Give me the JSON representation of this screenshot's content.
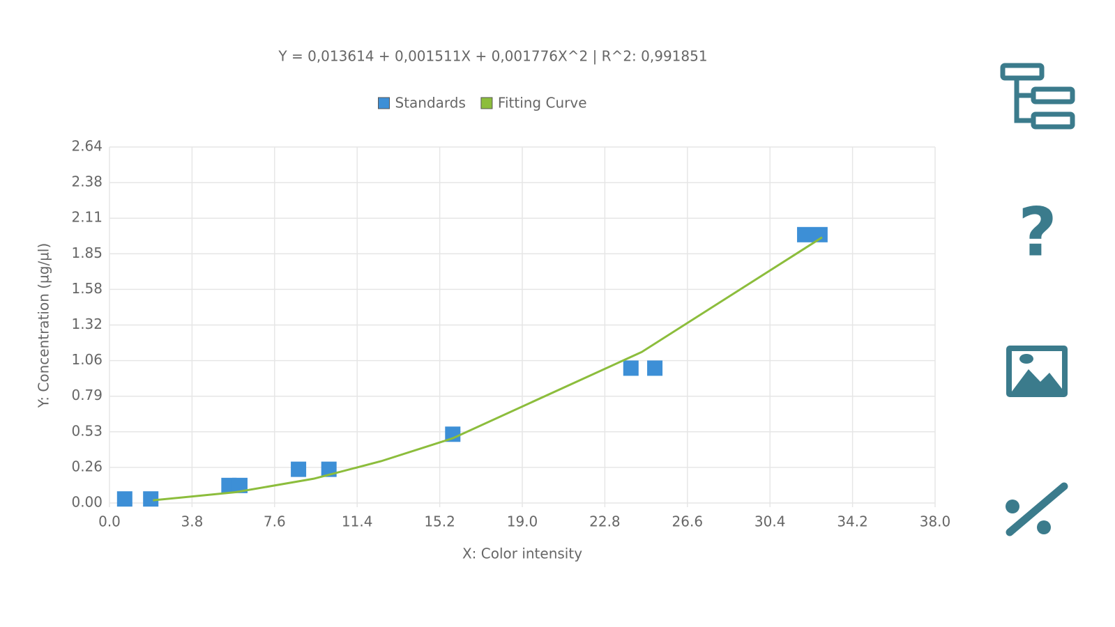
{
  "chart_data": {
    "type": "scatter",
    "title": "Y = 0,013614 + 0,001511X + 0,001776X^2 | R^2: 0,991851",
    "x_label": "X: Color intensity",
    "y_label": "Y: Concentration (µg/µl)",
    "xlim": [
      0,
      38
    ],
    "xticks": [
      {
        "value": 0,
        "label": "0.0"
      },
      3.8,
      7.6,
      11.4,
      15.2,
      {
        "value": 19,
        "label": "19.0"
      },
      22.8,
      26.6,
      30.4,
      34.2,
      {
        "value": 38,
        "label": "38.0"
      }
    ],
    "ylim": [
      0,
      2.64
    ],
    "yticks": [
      {
        "value": 0,
        "label": "0.00"
      },
      {
        "value": 0.264,
        "label": "0.26"
      },
      {
        "value": 0.528,
        "label": "0.53"
      },
      {
        "value": 0.792,
        "label": "0.79"
      },
      {
        "value": 1.056,
        "label": "1.06"
      },
      1.32,
      {
        "value": 1.584,
        "label": "1.58"
      },
      {
        "value": 1.848,
        "label": "1.85"
      },
      {
        "value": 2.112,
        "label": "2.11"
      },
      {
        "value": 2.376,
        "label": "2.38"
      },
      2.64
    ],
    "grid": true,
    "legend": "top",
    "series": [
      {
        "name": "Standards",
        "type": "scatter",
        "color": "#3d8fd6",
        "x": [
          0.7,
          1.9,
          5.5,
          6.0,
          8.7,
          10.1,
          15.8,
          24.0,
          25.1,
          32.0,
          32.7
        ],
        "values": [
          0.03,
          0.03,
          0.13,
          0.13,
          0.25,
          0.25,
          0.51,
          1.0,
          1.0,
          1.99,
          1.99
        ]
      },
      {
        "name": "Fitting Curve",
        "type": "line",
        "color": "#8cbd3c",
        "x": [
          2.0,
          5.8,
          9.4,
          12.5,
          15.8,
          24.5,
          32.8
        ],
        "values": [
          0.02,
          0.08,
          0.18,
          0.31,
          0.48,
          1.12,
          1.97
        ]
      }
    ]
  },
  "toolbar": {
    "help": "?"
  }
}
